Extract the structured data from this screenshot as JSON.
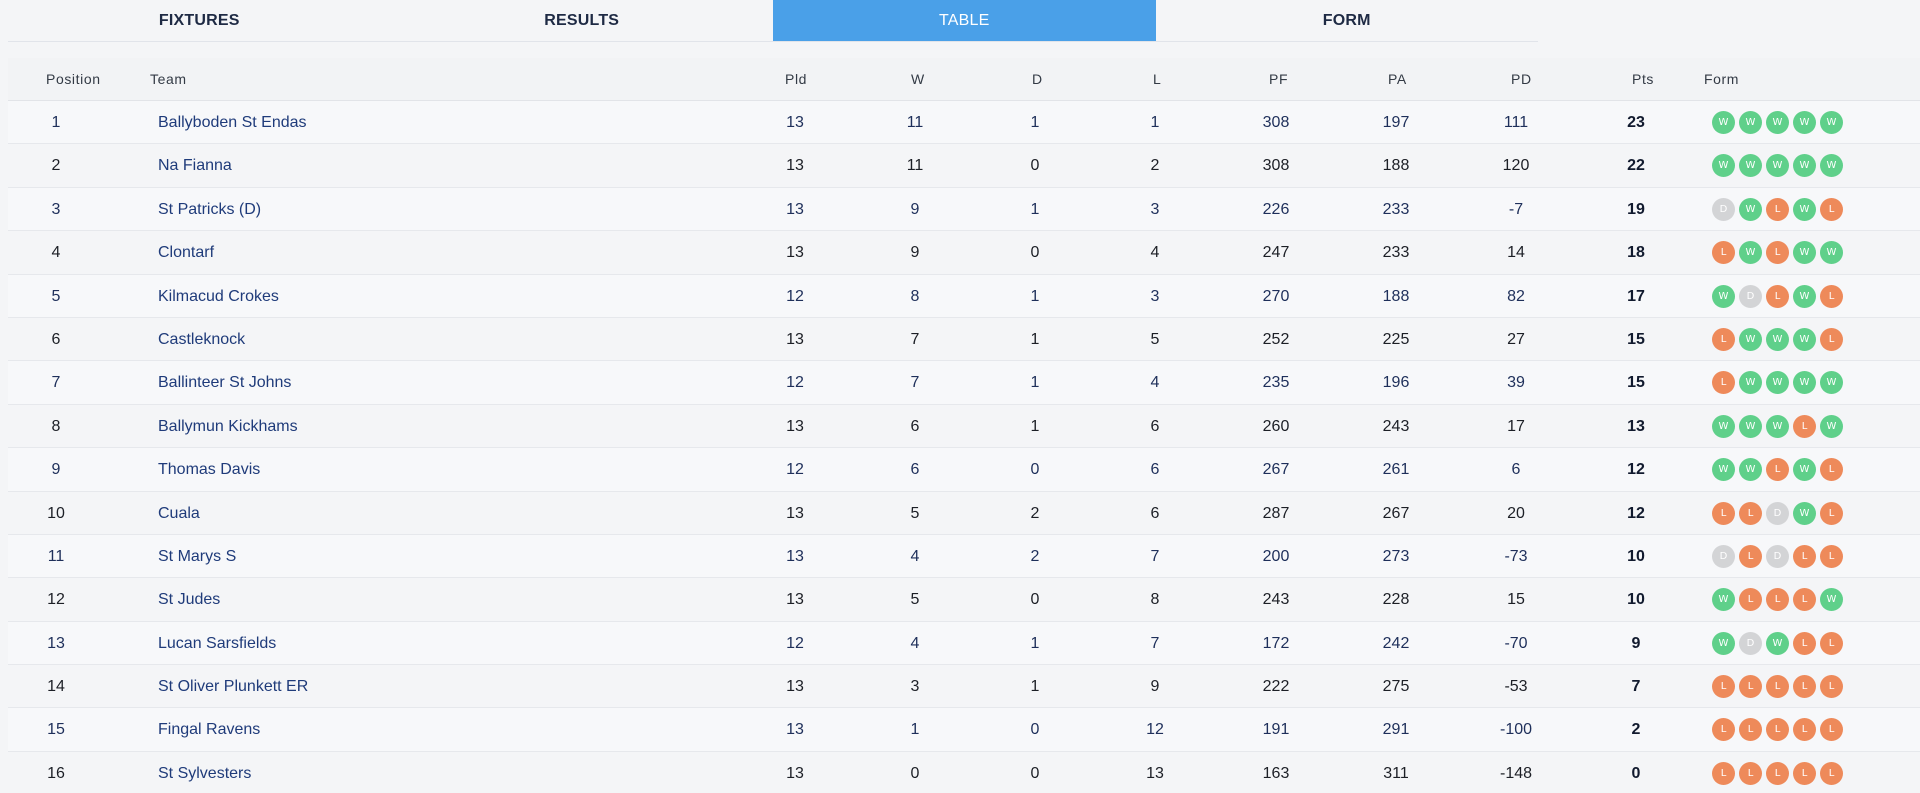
{
  "tabs": [
    {
      "label": "FIXTURES",
      "active": false
    },
    {
      "label": "RESULTS",
      "active": false
    },
    {
      "label": "TABLE",
      "active": true
    },
    {
      "label": "FORM",
      "active": false
    }
  ],
  "headers": {
    "position": "Position",
    "team": "Team",
    "pld": "Pld",
    "w": "W",
    "d": "D",
    "l": "L",
    "pf": "PF",
    "pa": "PA",
    "pd": "PD",
    "pts": "Pts",
    "form": "Form"
  },
  "colors": {
    "win": "#5fd08a",
    "loss": "#ee8a5a",
    "draw": "#d3d4d6",
    "active_tab": "#4aa0e8"
  },
  "rows": [
    {
      "pos": "1",
      "team": "Ballyboden St Endas",
      "pld": "13",
      "w": "11",
      "d": "1",
      "l": "1",
      "pf": "308",
      "pa": "197",
      "pd": "111",
      "pts": "23",
      "form": [
        "W",
        "W",
        "W",
        "W",
        "W"
      ]
    },
    {
      "pos": "2",
      "team": "Na Fianna",
      "pld": "13",
      "w": "11",
      "d": "0",
      "l": "2",
      "pf": "308",
      "pa": "188",
      "pd": "120",
      "pts": "22",
      "form": [
        "W",
        "W",
        "W",
        "W",
        "W"
      ]
    },
    {
      "pos": "3",
      "team": "St Patricks (D)",
      "pld": "13",
      "w": "9",
      "d": "1",
      "l": "3",
      "pf": "226",
      "pa": "233",
      "pd": "-7",
      "pts": "19",
      "form": [
        "D",
        "W",
        "L",
        "W",
        "L"
      ]
    },
    {
      "pos": "4",
      "team": "Clontarf",
      "pld": "13",
      "w": "9",
      "d": "0",
      "l": "4",
      "pf": "247",
      "pa": "233",
      "pd": "14",
      "pts": "18",
      "form": [
        "L",
        "W",
        "L",
        "W",
        "W"
      ]
    },
    {
      "pos": "5",
      "team": "Kilmacud Crokes",
      "pld": "12",
      "w": "8",
      "d": "1",
      "l": "3",
      "pf": "270",
      "pa": "188",
      "pd": "82",
      "pts": "17",
      "form": [
        "W",
        "D",
        "L",
        "W",
        "L"
      ]
    },
    {
      "pos": "6",
      "team": "Castleknock",
      "pld": "13",
      "w": "7",
      "d": "1",
      "l": "5",
      "pf": "252",
      "pa": "225",
      "pd": "27",
      "pts": "15",
      "form": [
        "L",
        "W",
        "W",
        "W",
        "L"
      ]
    },
    {
      "pos": "7",
      "team": "Ballinteer St Johns",
      "pld": "12",
      "w": "7",
      "d": "1",
      "l": "4",
      "pf": "235",
      "pa": "196",
      "pd": "39",
      "pts": "15",
      "form": [
        "L",
        "W",
        "W",
        "W",
        "W"
      ]
    },
    {
      "pos": "8",
      "team": "Ballymun Kickhams",
      "pld": "13",
      "w": "6",
      "d": "1",
      "l": "6",
      "pf": "260",
      "pa": "243",
      "pd": "17",
      "pts": "13",
      "form": [
        "W",
        "W",
        "W",
        "L",
        "W"
      ]
    },
    {
      "pos": "9",
      "team": "Thomas Davis",
      "pld": "12",
      "w": "6",
      "d": "0",
      "l": "6",
      "pf": "267",
      "pa": "261",
      "pd": "6",
      "pts": "12",
      "form": [
        "W",
        "W",
        "L",
        "W",
        "L"
      ]
    },
    {
      "pos": "10",
      "team": "Cuala",
      "pld": "13",
      "w": "5",
      "d": "2",
      "l": "6",
      "pf": "287",
      "pa": "267",
      "pd": "20",
      "pts": "12",
      "form": [
        "L",
        "L",
        "D",
        "W",
        "L"
      ]
    },
    {
      "pos": "11",
      "team": "St Marys S",
      "pld": "13",
      "w": "4",
      "d": "2",
      "l": "7",
      "pf": "200",
      "pa": "273",
      "pd": "-73",
      "pts": "10",
      "form": [
        "D",
        "L",
        "D",
        "L",
        "L"
      ]
    },
    {
      "pos": "12",
      "team": "St Judes",
      "pld": "13",
      "w": "5",
      "d": "0",
      "l": "8",
      "pf": "243",
      "pa": "228",
      "pd": "15",
      "pts": "10",
      "form": [
        "W",
        "L",
        "L",
        "L",
        "W"
      ]
    },
    {
      "pos": "13",
      "team": "Lucan Sarsfields",
      "pld": "12",
      "w": "4",
      "d": "1",
      "l": "7",
      "pf": "172",
      "pa": "242",
      "pd": "-70",
      "pts": "9",
      "form": [
        "W",
        "D",
        "W",
        "L",
        "L"
      ]
    },
    {
      "pos": "14",
      "team": "St Oliver Plunkett ER",
      "pld": "13",
      "w": "3",
      "d": "1",
      "l": "9",
      "pf": "222",
      "pa": "275",
      "pd": "-53",
      "pts": "7",
      "form": [
        "L",
        "L",
        "L",
        "L",
        "L"
      ]
    },
    {
      "pos": "15",
      "team": "Fingal Ravens",
      "pld": "13",
      "w": "1",
      "d": "0",
      "l": "12",
      "pf": "191",
      "pa": "291",
      "pd": "-100",
      "pts": "2",
      "form": [
        "L",
        "L",
        "L",
        "L",
        "L"
      ]
    },
    {
      "pos": "16",
      "team": "St Sylvesters",
      "pld": "13",
      "w": "0",
      "d": "0",
      "l": "13",
      "pf": "163",
      "pa": "311",
      "pd": "-148",
      "pts": "0",
      "form": [
        "L",
        "L",
        "L",
        "L",
        "L"
      ]
    }
  ]
}
